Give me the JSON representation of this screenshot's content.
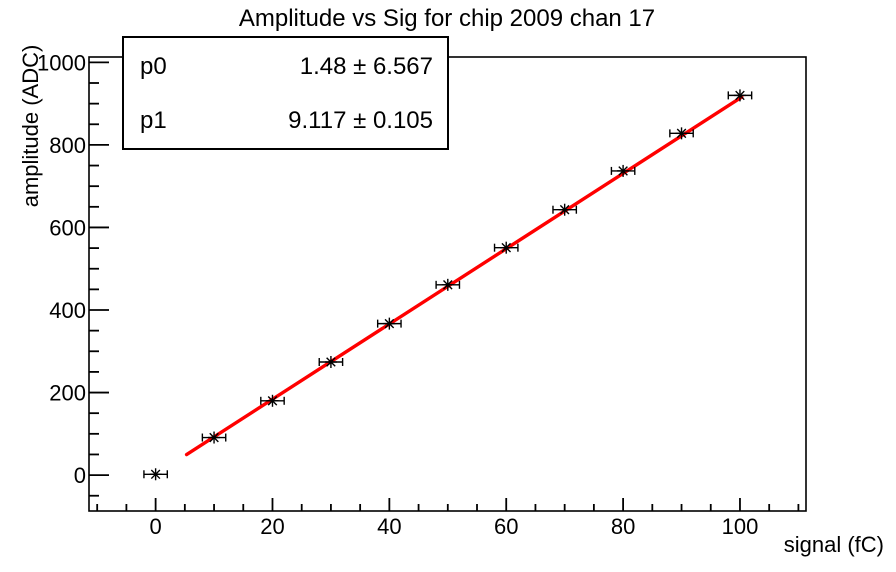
{
  "canvas": {
    "background": "#ffffff"
  },
  "chart_data": {
    "type": "scatter",
    "title": "Amplitude vs Sig for chip 2009 chan 17",
    "xlabel": "signal (fC)",
    "ylabel": "amplitude (ADC)",
    "xlim": [
      -11.4,
      111.3
    ],
    "ylim": [
      -87,
      1013
    ],
    "x_major_ticks": [
      0,
      20,
      40,
      60,
      80,
      100
    ],
    "x_minor_step": 5,
    "x_minor_range": [
      -10,
      110
    ],
    "y_major_ticks": [
      0,
      200,
      400,
      600,
      800,
      1000
    ],
    "y_minor_step": 50,
    "y_minor_range": [
      -50,
      1000
    ],
    "grid": false,
    "legend_position": "none",
    "colors": {
      "marker": "#000000",
      "fit_line": "#ff0000",
      "frame": "#000000",
      "stats_fill": "#ffffff",
      "stats_border": "#000000"
    },
    "points": {
      "name": "amplitude vs signal data",
      "marker": "asterisk",
      "x": [
        0,
        10,
        20,
        30,
        40,
        50,
        60,
        70,
        80,
        90,
        100
      ],
      "y": [
        2,
        91,
        180,
        274,
        367,
        461,
        551,
        643,
        737,
        828,
        920
      ],
      "xerr": 2
    },
    "fit": {
      "name": "linear fit",
      "p0": 1.48,
      "p1": 9.117,
      "x_start": 5.3,
      "x_end": 100.3
    },
    "stats": {
      "rows": [
        {
          "label": "p0",
          "value": "1.48 ± 6.567"
        },
        {
          "label": "p1",
          "value": "9.117 ± 0.105"
        }
      ]
    }
  }
}
